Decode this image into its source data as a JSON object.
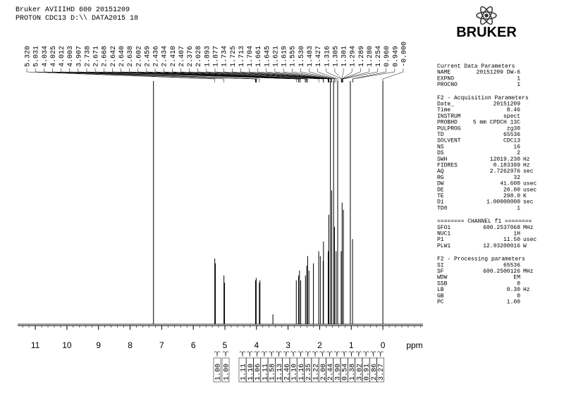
{
  "header": {
    "line1": "Bruker AVIIIHD 600 20151209",
    "line2": "PROTON CDC13 D:\\\\ DATA2015 18"
  },
  "logo": "BRUKER",
  "chart_data": {
    "type": "nmr",
    "x_label": "ppm",
    "xlim": [
      11.56,
      -1.27
    ],
    "xticks": [
      11,
      10,
      9,
      8,
      7,
      6,
      5,
      4,
      3,
      2,
      1,
      0
    ],
    "ylim": [
      0,
      100
    ],
    "x": [
      7.26,
      5.32,
      5.3,
      5.03,
      5.01,
      4.03,
      4.01,
      3.91,
      3.89,
      3.48,
      2.74,
      2.67,
      2.64,
      2.6,
      2.45,
      2.41,
      2.38,
      2.34,
      2.2,
      2.03,
      1.98,
      1.89,
      1.88,
      1.73,
      1.71,
      1.66,
      1.62,
      1.56,
      1.53,
      1.48,
      1.43,
      1.32,
      1.29,
      1.25,
      1.03,
      0.96,
      0.0
    ],
    "values": [
      100,
      27,
      25,
      20,
      17,
      18,
      19,
      17,
      18,
      4,
      18,
      20,
      22,
      18,
      20,
      24,
      28,
      22,
      25,
      30,
      28,
      26,
      34,
      30,
      45,
      100,
      55,
      100,
      40,
      30,
      100,
      30,
      50,
      47,
      100,
      35,
      100
    ],
    "color": "#000000",
    "peak_labels": [
      "5.320",
      "5.031",
      "4.034",
      "4.025",
      "4.012",
      "4.003",
      "3.907",
      "2.738",
      "2.671",
      "2.668",
      "2.642",
      "2.640",
      "2.638",
      "2.602",
      "2.459",
      "2.436",
      "2.434",
      "2.410",
      "2.407",
      "2.376",
      "2.028",
      "1.893",
      "1.877",
      "1.734",
      "1.725",
      "1.713",
      "1.704",
      "1.661",
      "1.645",
      "1.621",
      "1.619",
      "1.555",
      "1.530",
      "1.483",
      "1.427",
      "1.316",
      "1.305",
      "1.301",
      "1.294",
      "1.289",
      "1.280",
      "1.254",
      "0.960",
      "0.949",
      "-0.000"
    ],
    "integrals": [
      "1.00",
      "1.00",
      "1.11",
      "1.10",
      "1.06",
      "1.11",
      "1.58",
      "1.13",
      "2.46",
      "1.10",
      "1.16",
      "2.35",
      "1.22",
      "2.00",
      "2.44",
      "3.90",
      "0.54",
      "1.38",
      "3.02",
      "0.91",
      "2.86",
      "3.27"
    ]
  },
  "panel": {
    "sections": [
      {
        "title": "Current Data Parameters",
        "rows": [
          [
            "NAME",
            "20151209 DW-6"
          ],
          [
            "EXPNO",
            "1"
          ],
          [
            "PROCNO",
            "1"
          ]
        ]
      },
      {
        "title": "F2 - Acquisition Parameters",
        "rows": [
          [
            "Date_",
            "20151209"
          ],
          [
            "Time",
            "8.46"
          ],
          [
            "INSTRUM",
            "spect"
          ],
          [
            "PROBHD",
            "5 mm CPDCH 13C"
          ],
          [
            "PULPROG",
            "zg30"
          ],
          [
            "TD",
            "65536"
          ],
          [
            "SOLVENT",
            "CDC13"
          ],
          [
            "NS",
            "16"
          ],
          [
            "DS",
            "2"
          ],
          [
            "SWH",
            "12019.230",
            "Hz"
          ],
          [
            "FIDRES",
            "0.183399",
            "Hz"
          ],
          [
            "AQ",
            "2.7262976",
            "sec"
          ],
          [
            "RG",
            "32"
          ],
          [
            "DW",
            "41.600",
            "usec"
          ],
          [
            "DE",
            "20.00",
            "usec"
          ],
          [
            "TE",
            "298.0",
            "K"
          ],
          [
            "D1",
            "1.00000000",
            "sec"
          ],
          [
            "TD0",
            "1"
          ]
        ]
      },
      {
        "title": "======== CHANNEL f1 ========",
        "rows": [
          [
            "SFO1",
            "600.2537068",
            "MHz"
          ],
          [
            "NUC1",
            "1H"
          ],
          [
            "P1",
            "11.50",
            "usec"
          ],
          [
            "PLW1",
            "12.93200016",
            "W"
          ]
        ]
      },
      {
        "title": "F2 - Processing parameters",
        "rows": [
          [
            "SI",
            "65536"
          ],
          [
            "SF",
            "600.2500126",
            "MHz"
          ],
          [
            "WDW",
            "EM"
          ],
          [
            "SSB",
            "0"
          ],
          [
            "LB",
            "0.30",
            "Hz"
          ],
          [
            "GB",
            "0"
          ],
          [
            "PC",
            "1.00"
          ]
        ]
      }
    ]
  }
}
